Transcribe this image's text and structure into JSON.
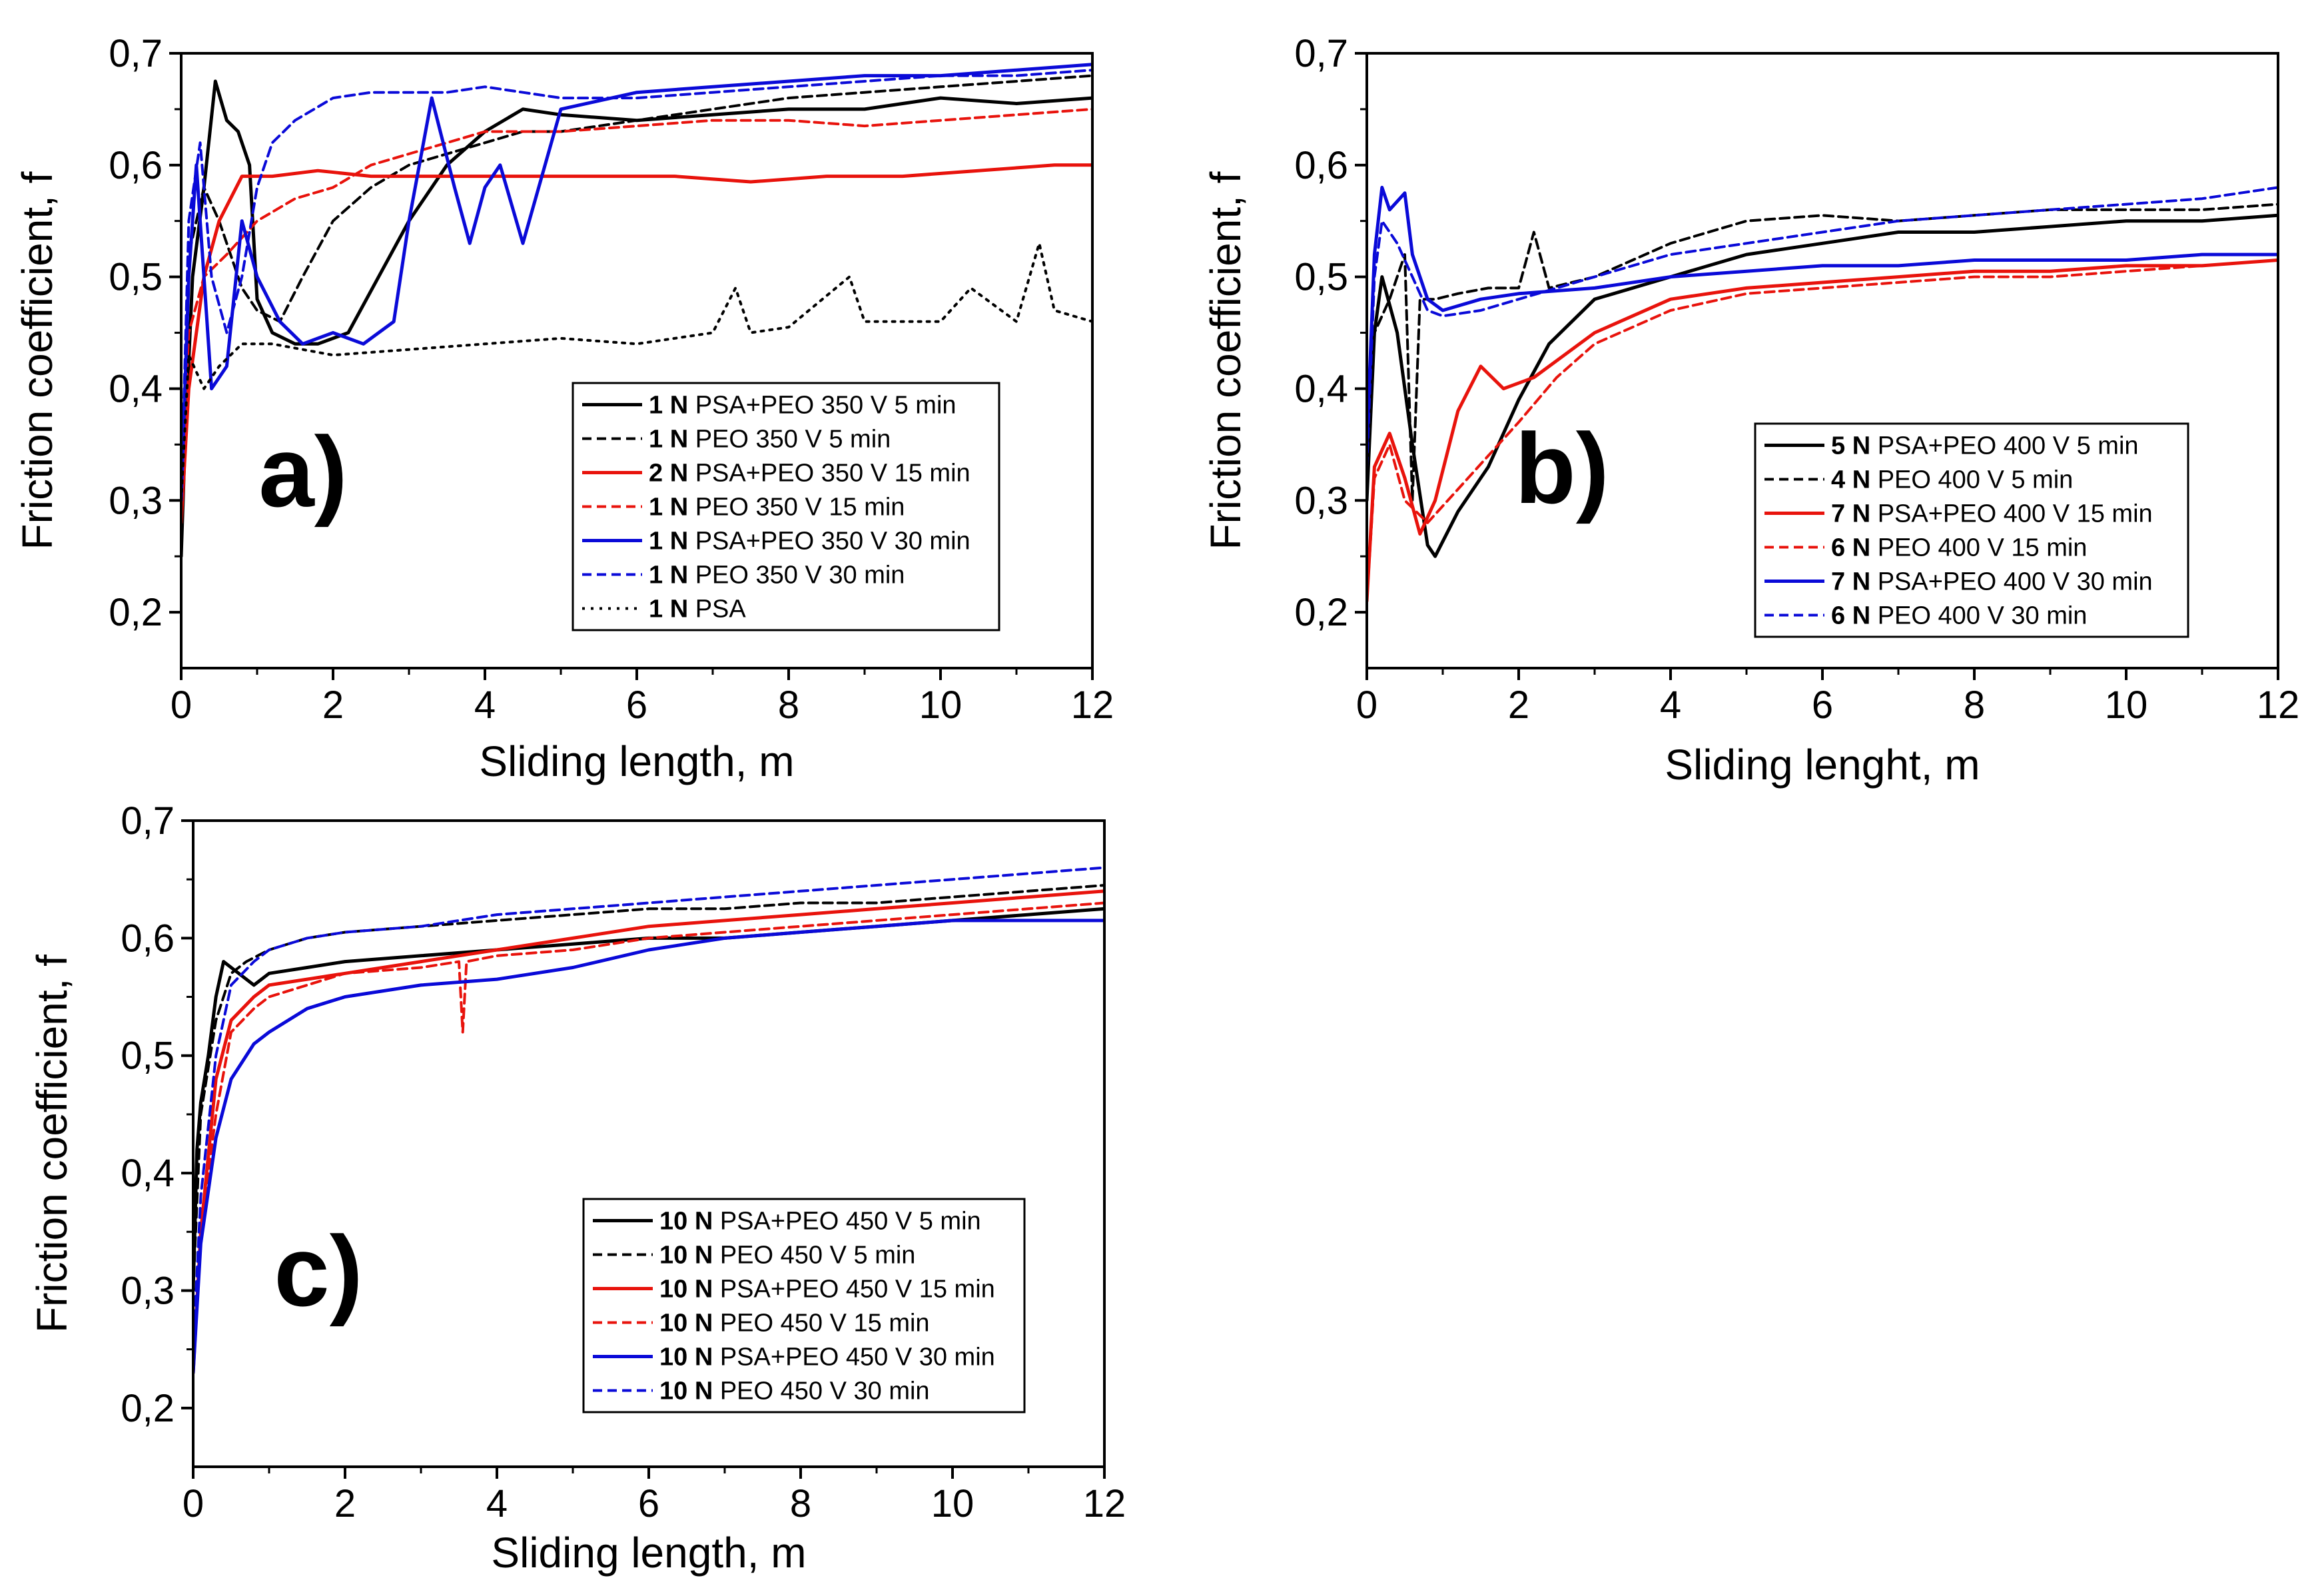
{
  "chart_data": [
    {
      "type": "line",
      "panel": "a)",
      "xlabel": "Sliding length, m",
      "ylabel": "Friction coefficient, f",
      "xlim": [
        0,
        12
      ],
      "ylim": [
        0.15,
        0.7
      ],
      "xticks": [
        "0",
        "2",
        "4",
        "6",
        "8",
        "10",
        "12"
      ],
      "yticks": [
        "0,2",
        "0,3",
        "0,4",
        "0,5",
        "0,6",
        "0,7"
      ],
      "legend_position": "lower-right",
      "series": [
        {
          "name_bold": "1 N",
          "name": "PSA+PEO 350 V 5 min",
          "color": "#000000",
          "style": "solid",
          "x": [
            0,
            0.05,
            0.15,
            0.3,
            0.45,
            0.6,
            0.75,
            0.9,
            1.0,
            1.2,
            1.5,
            1.8,
            2.2,
            2.6,
            3.0,
            3.5,
            4.0,
            4.5,
            5.0,
            6.0,
            7.0,
            8.0,
            9.0,
            10.0,
            11.0,
            12.0
          ],
          "y": [
            0.25,
            0.35,
            0.5,
            0.58,
            0.675,
            0.64,
            0.63,
            0.6,
            0.48,
            0.45,
            0.44,
            0.44,
            0.45,
            0.5,
            0.55,
            0.6,
            0.63,
            0.65,
            0.645,
            0.64,
            0.645,
            0.65,
            0.65,
            0.66,
            0.655,
            0.66
          ]
        },
        {
          "name_bold": "1 N",
          "name": "PEO 350 V 5 min",
          "color": "#000000",
          "style": "dashed",
          "x": [
            0,
            0.1,
            0.3,
            0.5,
            0.8,
            1.0,
            1.3,
            1.6,
            2.0,
            2.5,
            3.0,
            3.5,
            4.0,
            4.5,
            5.0,
            6.0,
            7.0,
            8.0,
            9.0,
            10.0,
            11.0,
            12.0
          ],
          "y": [
            0.3,
            0.52,
            0.58,
            0.55,
            0.49,
            0.47,
            0.46,
            0.5,
            0.55,
            0.58,
            0.6,
            0.61,
            0.62,
            0.63,
            0.63,
            0.64,
            0.65,
            0.66,
            0.665,
            0.67,
            0.675,
            0.68
          ]
        },
        {
          "name_bold": "2 N",
          "name": "PSA+PEO 350 V 15 min",
          "color": "#e8130c",
          "style": "solid",
          "x": [
            0,
            0.1,
            0.3,
            0.5,
            0.8,
            1.2,
            1.8,
            2.5,
            3.5,
            4.5,
            5.5,
            6.5,
            7.5,
            8.5,
            9.5,
            10.5,
            11.5,
            12.0
          ],
          "y": [
            0.28,
            0.4,
            0.5,
            0.55,
            0.59,
            0.59,
            0.595,
            0.59,
            0.59,
            0.59,
            0.59,
            0.59,
            0.585,
            0.59,
            0.59,
            0.595,
            0.6,
            0.6
          ]
        },
        {
          "name_bold": "1 N",
          "name": "PEO 350 V 15 min",
          "color": "#e8130c",
          "style": "dashed",
          "x": [
            0,
            0.1,
            0.3,
            0.6,
            1.0,
            1.5,
            2.0,
            2.5,
            3.0,
            3.5,
            4.0,
            5.0,
            6.0,
            7.0,
            8.0,
            9.0,
            10.0,
            11.0,
            12.0
          ],
          "y": [
            0.3,
            0.45,
            0.5,
            0.52,
            0.55,
            0.57,
            0.58,
            0.6,
            0.61,
            0.62,
            0.63,
            0.63,
            0.635,
            0.64,
            0.64,
            0.635,
            0.64,
            0.645,
            0.65
          ]
        },
        {
          "name_bold": "1 N",
          "name": "PSA+PEO 350 V 30 min",
          "color": "#0a0ad8",
          "style": "solid",
          "x": [
            0,
            0.1,
            0.2,
            0.4,
            0.6,
            0.8,
            1.0,
            1.3,
            1.6,
            2.0,
            2.4,
            2.8,
            3.0,
            3.3,
            3.6,
            3.8,
            4.0,
            4.2,
            4.5,
            5.0,
            6.0,
            7.0,
            8.0,
            9.0,
            10.0,
            11.0,
            12.0
          ],
          "y": [
            0.3,
            0.5,
            0.6,
            0.4,
            0.42,
            0.55,
            0.5,
            0.46,
            0.44,
            0.45,
            0.44,
            0.46,
            0.55,
            0.66,
            0.58,
            0.53,
            0.58,
            0.6,
            0.53,
            0.65,
            0.665,
            0.67,
            0.675,
            0.68,
            0.68,
            0.685,
            0.69
          ]
        },
        {
          "name_bold": "1 N",
          "name": "PEO 350 V 30 min",
          "color": "#0a0ad8",
          "style": "dashed",
          "x": [
            0,
            0.1,
            0.25,
            0.4,
            0.6,
            0.8,
            1.0,
            1.2,
            1.5,
            2.0,
            2.5,
            3.0,
            3.5,
            4.0,
            4.5,
            5.0,
            6.0,
            7.0,
            8.0,
            9.0,
            10.0,
            11.0,
            12.0
          ],
          "y": [
            0.3,
            0.55,
            0.62,
            0.5,
            0.45,
            0.5,
            0.58,
            0.62,
            0.64,
            0.66,
            0.665,
            0.665,
            0.665,
            0.67,
            0.665,
            0.66,
            0.66,
            0.665,
            0.67,
            0.675,
            0.68,
            0.68,
            0.685
          ]
        },
        {
          "name_bold": "1 N",
          "name": "PSA",
          "color": "#000000",
          "style": "dotted",
          "x": [
            0,
            0.1,
            0.3,
            0.5,
            0.8,
            1.2,
            1.6,
            2.0,
            3.0,
            4.0,
            5.0,
            6.0,
            7.0,
            7.3,
            7.5,
            8.0,
            8.8,
            9.0,
            10.0,
            10.4,
            11.0,
            11.3,
            11.5,
            12.0
          ],
          "y": [
            0.3,
            0.43,
            0.4,
            0.42,
            0.44,
            0.44,
            0.435,
            0.43,
            0.435,
            0.44,
            0.445,
            0.44,
            0.45,
            0.49,
            0.45,
            0.455,
            0.5,
            0.46,
            0.46,
            0.49,
            0.46,
            0.53,
            0.47,
            0.46
          ]
        }
      ]
    },
    {
      "type": "line",
      "panel": "b)",
      "xlabel": "Sliding lenght, m",
      "ylabel": "Friction coefficient, f",
      "xlim": [
        0,
        12
      ],
      "ylim": [
        0.15,
        0.7
      ],
      "xticks": [
        "0",
        "2",
        "4",
        "6",
        "8",
        "10",
        "12"
      ],
      "yticks": [
        "0,2",
        "0,3",
        "0,4",
        "0,5",
        "0,6",
        "0,7"
      ],
      "legend_position": "lower-right",
      "series": [
        {
          "name_bold": "5 N",
          "name": "PSA+PEO 400 V 5 min",
          "color": "#000000",
          "style": "solid",
          "x": [
            0,
            0.1,
            0.2,
            0.4,
            0.6,
            0.8,
            0.9,
            1.2,
            1.6,
            2.0,
            2.4,
            3.0,
            4.0,
            5.0,
            6.0,
            7.0,
            8.0,
            9.0,
            10.0,
            11.0,
            12.0
          ],
          "y": [
            0.3,
            0.45,
            0.5,
            0.45,
            0.35,
            0.26,
            0.25,
            0.29,
            0.33,
            0.39,
            0.44,
            0.48,
            0.5,
            0.52,
            0.53,
            0.54,
            0.54,
            0.545,
            0.55,
            0.55,
            0.555
          ]
        },
        {
          "name_bold": "4 N",
          "name": "PEO 400 V 5 min",
          "color": "#000000",
          "style": "dashed",
          "x": [
            0,
            0.1,
            0.3,
            0.5,
            0.6,
            0.7,
            0.9,
            1.2,
            1.6,
            2.0,
            2.2,
            2.4,
            3.0,
            4.0,
            5.0,
            6.0,
            7.0,
            8.0,
            9.0,
            10.0,
            11.0,
            12.0
          ],
          "y": [
            0.3,
            0.45,
            0.48,
            0.52,
            0.3,
            0.48,
            0.48,
            0.485,
            0.49,
            0.49,
            0.54,
            0.49,
            0.5,
            0.53,
            0.55,
            0.555,
            0.55,
            0.555,
            0.56,
            0.56,
            0.56,
            0.565
          ]
        },
        {
          "name_bold": "7 N",
          "name": "PSA+PEO 400 V 15 min",
          "color": "#e8130c",
          "style": "solid",
          "x": [
            0,
            0.1,
            0.3,
            0.5,
            0.7,
            0.9,
            1.2,
            1.5,
            1.8,
            2.2,
            2.6,
            3.0,
            4.0,
            5.0,
            6.0,
            7.0,
            8.0,
            9.0,
            10.0,
            11.0,
            12.0
          ],
          "y": [
            0.21,
            0.33,
            0.36,
            0.32,
            0.27,
            0.3,
            0.38,
            0.42,
            0.4,
            0.41,
            0.43,
            0.45,
            0.48,
            0.49,
            0.495,
            0.5,
            0.505,
            0.505,
            0.51,
            0.51,
            0.515
          ]
        },
        {
          "name_bold": "6 N",
          "name": "PEO 400 V 15 min",
          "color": "#e8130c",
          "style": "dashed",
          "x": [
            0,
            0.1,
            0.3,
            0.5,
            0.8,
            1.2,
            1.6,
            2.0,
            2.5,
            3.0,
            4.0,
            5.0,
            6.0,
            7.0,
            8.0,
            9.0,
            10.0,
            11.0,
            12.0
          ],
          "y": [
            0.21,
            0.32,
            0.35,
            0.3,
            0.28,
            0.31,
            0.34,
            0.37,
            0.41,
            0.44,
            0.47,
            0.485,
            0.49,
            0.495,
            0.5,
            0.5,
            0.505,
            0.51,
            0.515
          ]
        },
        {
          "name_bold": "7 N",
          "name": "PSA+PEO 400 V 30 min",
          "color": "#0a0ad8",
          "style": "solid",
          "x": [
            0,
            0.1,
            0.2,
            0.3,
            0.5,
            0.6,
            0.8,
            1.0,
            1.5,
            2.0,
            3.0,
            4.0,
            5.0,
            6.0,
            7.0,
            8.0,
            9.0,
            10.0,
            11.0,
            12.0
          ],
          "y": [
            0.35,
            0.52,
            0.58,
            0.56,
            0.575,
            0.52,
            0.48,
            0.47,
            0.48,
            0.485,
            0.49,
            0.5,
            0.505,
            0.51,
            0.51,
            0.515,
            0.515,
            0.515,
            0.52,
            0.52
          ]
        },
        {
          "name_bold": "6 N",
          "name": "PEO 400 V 30 min",
          "color": "#0a0ad8",
          "style": "dashed",
          "x": [
            0,
            0.1,
            0.2,
            0.4,
            0.6,
            0.8,
            1.0,
            1.5,
            2.0,
            3.0,
            4.0,
            5.0,
            6.0,
            7.0,
            8.0,
            9.0,
            10.0,
            11.0,
            12.0
          ],
          "y": [
            0.33,
            0.5,
            0.55,
            0.53,
            0.5,
            0.47,
            0.465,
            0.47,
            0.48,
            0.5,
            0.52,
            0.53,
            0.54,
            0.55,
            0.555,
            0.56,
            0.565,
            0.57,
            0.58
          ]
        }
      ]
    },
    {
      "type": "line",
      "panel": "c)",
      "xlabel": "Sliding length, m",
      "ylabel": "Friction coefficient, f",
      "xlim": [
        0,
        12
      ],
      "ylim": [
        0.15,
        0.7
      ],
      "xticks": [
        "0",
        "2",
        "4",
        "6",
        "8",
        "10",
        "12"
      ],
      "yticks": [
        "0,2",
        "0,3",
        "0,4",
        "0,5",
        "0,6",
        "0,7"
      ],
      "legend_position": "lower-right",
      "series": [
        {
          "name_bold": "10 N",
          "name": "PSA+PEO 450 V 5 min",
          "color": "#000000",
          "style": "solid",
          "x": [
            0,
            0.05,
            0.1,
            0.2,
            0.3,
            0.4,
            0.6,
            0.8,
            1.0,
            1.5,
            2.0,
            3.0,
            4.0,
            5.0,
            6.0,
            7.0,
            8.0,
            9.0,
            10.0,
            11.0,
            12.0
          ],
          "y": [
            0.3,
            0.42,
            0.46,
            0.5,
            0.55,
            0.58,
            0.57,
            0.56,
            0.57,
            0.575,
            0.58,
            0.585,
            0.59,
            0.595,
            0.6,
            0.6,
            0.605,
            0.61,
            0.615,
            0.62,
            0.625
          ]
        },
        {
          "name_bold": "10 N",
          "name": "PEO 450 V 5 min",
          "color": "#000000",
          "style": "dashed",
          "x": [
            0,
            0.1,
            0.3,
            0.5,
            0.7,
            1.0,
            1.5,
            2.0,
            3.0,
            4.0,
            5.0,
            6.0,
            7.0,
            8.0,
            9.0,
            10.0,
            11.0,
            12.0
          ],
          "y": [
            0.3,
            0.45,
            0.53,
            0.57,
            0.58,
            0.59,
            0.6,
            0.605,
            0.61,
            0.615,
            0.62,
            0.625,
            0.625,
            0.63,
            0.63,
            0.635,
            0.64,
            0.645
          ]
        },
        {
          "name_bold": "10 N",
          "name": "PSA+PEO 450 V 15 min",
          "color": "#e8130c",
          "style": "solid",
          "x": [
            0,
            0.1,
            0.3,
            0.5,
            0.8,
            1.0,
            1.5,
            2.0,
            3.0,
            4.0,
            5.0,
            6.0,
            7.0,
            8.0,
            9.0,
            10.0,
            11.0,
            12.0
          ],
          "y": [
            0.23,
            0.35,
            0.48,
            0.53,
            0.55,
            0.56,
            0.565,
            0.57,
            0.58,
            0.59,
            0.6,
            0.61,
            0.615,
            0.62,
            0.625,
            0.63,
            0.635,
            0.64
          ]
        },
        {
          "name_bold": "10 N",
          "name": "PEO 450 V 15 min",
          "color": "#e8130c",
          "style": "dashed",
          "x": [
            0,
            0.1,
            0.3,
            0.5,
            0.8,
            1.0,
            1.5,
            2.0,
            3.0,
            3.5,
            3.55,
            3.6,
            4.0,
            5.0,
            6.0,
            7.0,
            8.0,
            9.0,
            10.0,
            11.0,
            12.0
          ],
          "y": [
            0.23,
            0.35,
            0.45,
            0.52,
            0.54,
            0.55,
            0.56,
            0.57,
            0.575,
            0.58,
            0.52,
            0.58,
            0.585,
            0.59,
            0.6,
            0.605,
            0.61,
            0.615,
            0.62,
            0.625,
            0.63
          ]
        },
        {
          "name_bold": "10 N",
          "name": "PSA+PEO 450 V 30 min",
          "color": "#0a0ad8",
          "style": "solid",
          "x": [
            0,
            0.1,
            0.3,
            0.5,
            0.8,
            1.0,
            1.5,
            2.0,
            3.0,
            4.0,
            5.0,
            6.0,
            7.0,
            8.0,
            9.0,
            10.0,
            11.0,
            12.0
          ],
          "y": [
            0.23,
            0.34,
            0.43,
            0.48,
            0.51,
            0.52,
            0.54,
            0.55,
            0.56,
            0.565,
            0.575,
            0.59,
            0.6,
            0.605,
            0.61,
            0.615,
            0.615,
            0.615
          ]
        },
        {
          "name_bold": "10 N",
          "name": "PEO 450 V 30 min",
          "color": "#0a0ad8",
          "style": "dashed",
          "x": [
            0,
            0.1,
            0.3,
            0.5,
            0.8,
            1.0,
            1.5,
            2.0,
            3.0,
            4.0,
            5.0,
            6.0,
            7.0,
            8.0,
            9.0,
            10.0,
            11.0,
            12.0
          ],
          "y": [
            0.25,
            0.38,
            0.5,
            0.56,
            0.58,
            0.59,
            0.6,
            0.605,
            0.61,
            0.62,
            0.625,
            0.63,
            0.635,
            0.64,
            0.645,
            0.65,
            0.655,
            0.66
          ]
        }
      ]
    }
  ]
}
